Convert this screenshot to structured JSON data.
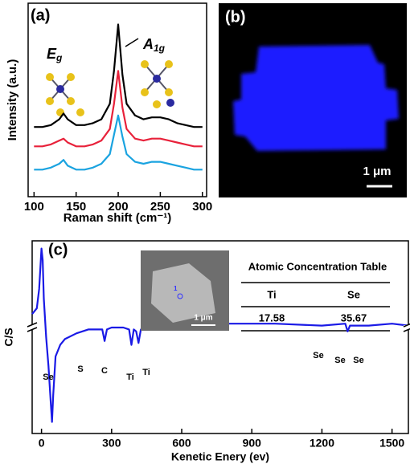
{
  "chart_data": [
    {
      "type": "line",
      "panel_label": "(a)",
      "xlabel": "Raman shift (cm⁻¹)",
      "ylabel": "Intensity (a.u.)",
      "annotations": [
        {
          "text": "E",
          "sub": "g"
        },
        {
          "text": "A",
          "sub": "1g"
        }
      ],
      "x": [
        100,
        110,
        120,
        130,
        135,
        140,
        150,
        160,
        170,
        180,
        190,
        195,
        200,
        205,
        210,
        220,
        230,
        240,
        250,
        260,
        270,
        280,
        290,
        300
      ],
      "series": [
        {
          "color": "#000000",
          "values": [
            3.6,
            3.6,
            3.7,
            4.0,
            4.3,
            4.0,
            3.7,
            3.7,
            3.8,
            4.0,
            4.8,
            6.5,
            8.9,
            6.3,
            4.8,
            4.2,
            4.0,
            4.1,
            4.1,
            4.0,
            3.8,
            3.7,
            3.6,
            3.6
          ]
        },
        {
          "color": "#e8213a",
          "values": [
            2.6,
            2.6,
            2.7,
            2.9,
            3.0,
            2.8,
            2.6,
            2.6,
            2.7,
            2.9,
            3.5,
            4.8,
            6.5,
            4.6,
            3.5,
            3.0,
            2.9,
            3.0,
            3.0,
            2.9,
            2.8,
            2.7,
            2.6,
            2.6
          ]
        },
        {
          "color": "#1aa3e0",
          "values": [
            1.4,
            1.4,
            1.5,
            1.7,
            1.9,
            1.6,
            1.4,
            1.4,
            1.5,
            1.7,
            2.2,
            3.2,
            4.2,
            3.1,
            2.2,
            1.8,
            1.7,
            1.8,
            1.8,
            1.7,
            1.6,
            1.5,
            1.4,
            1.4
          ]
        }
      ],
      "xlim": [
        93,
        305
      ],
      "xticks": [
        100,
        150,
        200,
        250,
        300
      ],
      "ylim": [
        0,
        10
      ]
    },
    {
      "type": "line",
      "panel_label": "(c)",
      "xlabel": "Kenetic Enery (ev)",
      "ylabel": "C/S",
      "annotations": [
        "Se",
        "S",
        "C",
        "Ti",
        "Ti",
        "Se",
        "Se",
        "Se"
      ],
      "x": [
        -40,
        -20,
        -10,
        0,
        5,
        10,
        20,
        30,
        40,
        45,
        50,
        60,
        80,
        100,
        150,
        200,
        260,
        270,
        280,
        300,
        350,
        375,
        385,
        395,
        405,
        415,
        425,
        450,
        500,
        600,
        800,
        1000,
        1200,
        1300,
        1310,
        1320,
        1400,
        1500,
        1570
      ],
      "series": [
        {
          "color": "#1a1ae6",
          "values": [
            6.2,
            6.5,
            7.5,
            9.6,
            9.0,
            7.0,
            5.0,
            3.5,
            1.5,
            0.6,
            2.0,
            4.0,
            4.6,
            4.9,
            5.2,
            5.4,
            5.4,
            4.8,
            5.4,
            5.5,
            5.5,
            5.4,
            4.6,
            5.4,
            5.3,
            4.7,
            5.4,
            5.5,
            5.6,
            5.6,
            5.7,
            5.7,
            5.6,
            5.7,
            5.3,
            5.6,
            5.6,
            5.7,
            5.6
          ]
        }
      ],
      "xlim": [
        -40,
        1570
      ],
      "xticks": [
        0,
        300,
        600,
        900,
        1200,
        1500
      ],
      "ylim": [
        0,
        10
      ],
      "inset": {
        "marker": "1",
        "scale_bar": "1 μm"
      },
      "inset_table": {
        "title": "Atomic Concentration Table",
        "columns": [
          "Ti",
          "Se"
        ],
        "rows": [
          [
            17.58,
            35.67
          ]
        ]
      }
    }
  ],
  "panel_b": {
    "panel_label": "(b)",
    "scale_bar": "1 μm"
  }
}
